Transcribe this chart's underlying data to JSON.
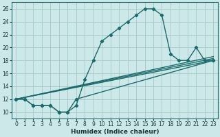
{
  "xlabel": "Humidex (Indice chaleur)",
  "background_color": "#cce8e8",
  "grid_color": "#aacccc",
  "line_color": "#1a6b6b",
  "xlim": [
    -0.5,
    23.5
  ],
  "ylim": [
    9.0,
    27.0
  ],
  "yticks": [
    10,
    12,
    14,
    16,
    18,
    20,
    22,
    24,
    26
  ],
  "xticks": [
    0,
    1,
    2,
    3,
    4,
    5,
    6,
    7,
    8,
    9,
    10,
    11,
    12,
    13,
    14,
    15,
    16,
    17,
    18,
    19,
    20,
    21,
    22,
    23
  ],
  "main_x": [
    0,
    1,
    2,
    3,
    4,
    5,
    6,
    7,
    8,
    9,
    10,
    11,
    12,
    13,
    14,
    15,
    16,
    17,
    18,
    19,
    20,
    21,
    22,
    23
  ],
  "main_y": [
    12,
    12,
    11,
    11,
    11,
    10,
    10,
    11,
    15,
    18,
    21,
    22,
    23,
    24,
    25,
    26,
    26,
    25,
    19,
    18,
    18,
    20,
    18,
    18
  ],
  "line2_x": [
    0,
    1,
    2,
    3,
    4,
    5,
    6,
    7,
    23
  ],
  "line2_y": [
    12,
    12,
    11,
    11,
    11,
    10,
    10,
    12,
    18
  ],
  "line3_x": [
    0,
    23
  ],
  "line3_y": [
    12,
    18
  ],
  "line4_x": [
    0,
    23
  ],
  "line4_y": [
    12,
    18.3
  ],
  "line5_x": [
    0,
    23
  ],
  "line5_y": [
    12,
    18.6
  ]
}
